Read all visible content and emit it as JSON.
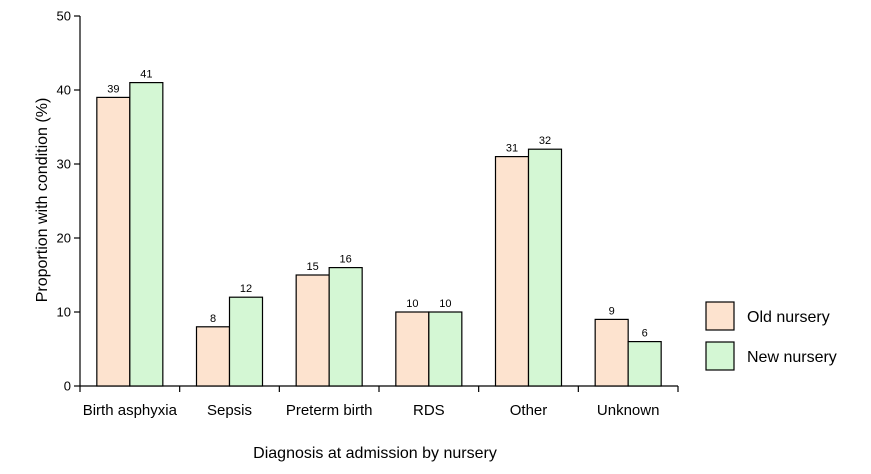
{
  "chart_data": {
    "type": "bar",
    "title": "",
    "xlabel": "Diagnosis at admission by nursery",
    "ylabel": "Proportion with condition (%)",
    "ylim": [
      0,
      50
    ],
    "yticks": [
      0,
      10,
      20,
      30,
      40,
      50
    ],
    "categories": [
      "Birth asphyxia",
      "Sepsis",
      "Preterm birth",
      "RDS",
      "Other",
      "Unknown"
    ],
    "series": [
      {
        "name": "Old nursery",
        "values": [
          39,
          8,
          15,
          10,
          31,
          9
        ],
        "color": "#fde3cf"
      },
      {
        "name": "New nursery",
        "values": [
          41,
          12,
          16,
          10,
          32,
          6
        ],
        "color": "#d4f7d4"
      }
    ],
    "legend_position": "right",
    "grid": false
  }
}
